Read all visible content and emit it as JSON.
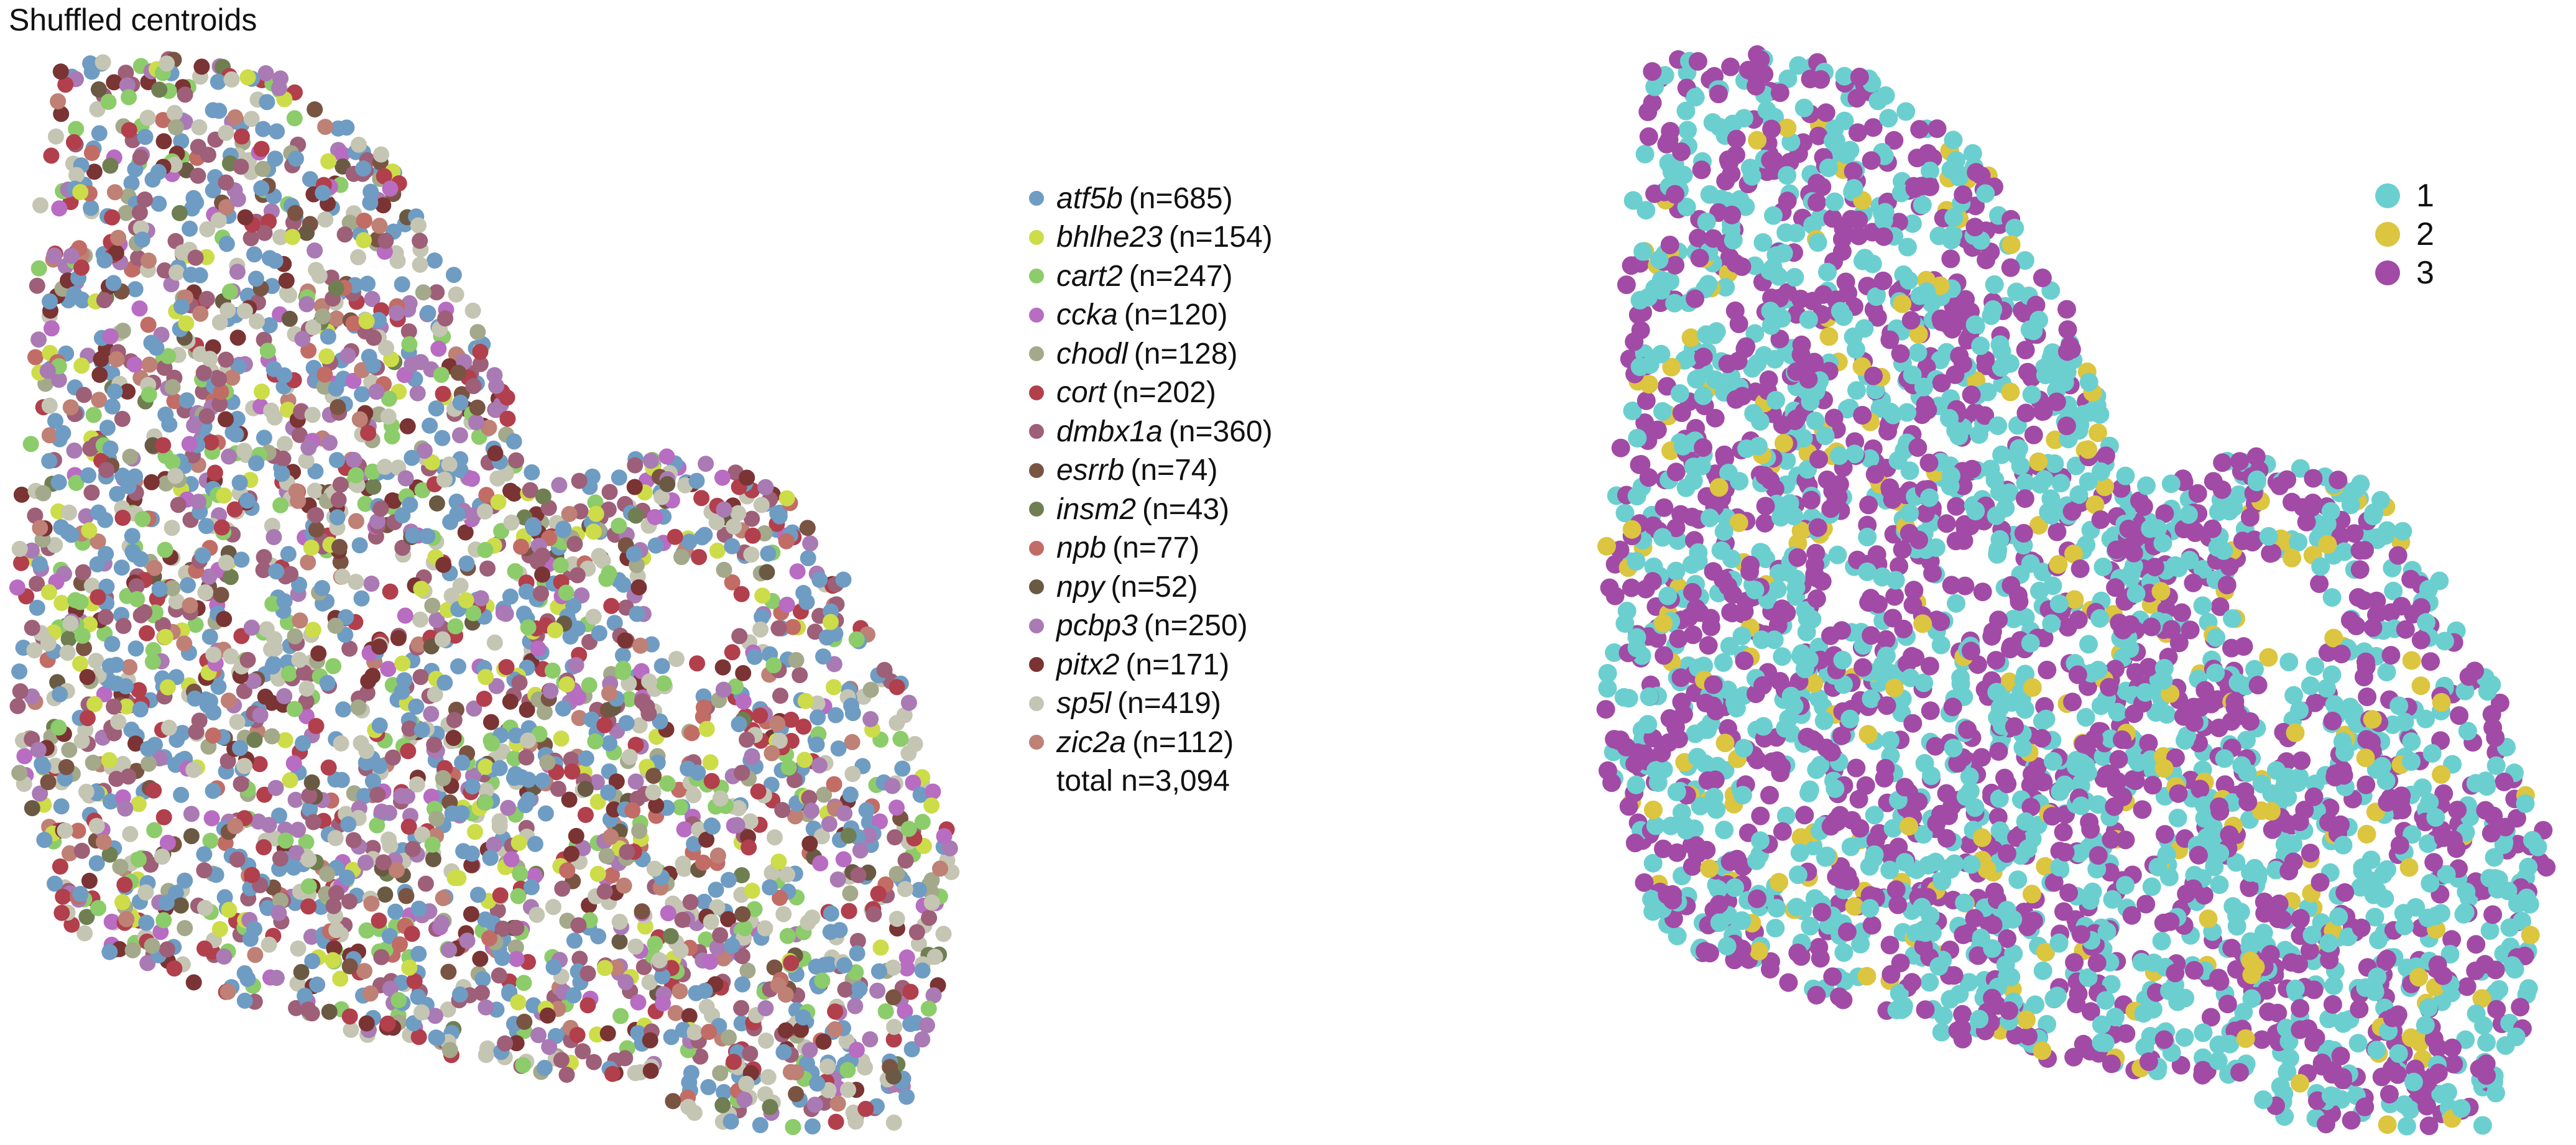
{
  "title": "Shuffled centroids",
  "chart_data": [
    {
      "type": "scatter",
      "title": "Shuffled centroids",
      "legend_placement": "right",
      "grid": false,
      "axes_visible": false,
      "series": [
        {
          "name": "atf5b",
          "n_label": "(n=685)",
          "count": 685,
          "color": "#6f9cc3"
        },
        {
          "name": "bhlhe23",
          "n_label": "(n=154)",
          "count": 154,
          "color": "#cddc49"
        },
        {
          "name": "cart2",
          "n_label": "(n=247)",
          "count": 247,
          "color": "#8ccc6a"
        },
        {
          "name": "ccka",
          "n_label": "(n=120)",
          "count": 120,
          "color": "#b86cc2"
        },
        {
          "name": "chodl",
          "n_label": "(n=128)",
          "count": 128,
          "color": "#a3a98a"
        },
        {
          "name": "cort",
          "n_label": "(n=202)",
          "count": 202,
          "color": "#b23f4c"
        },
        {
          "name": "dmbx1a",
          "n_label": "(n=360)",
          "count": 360,
          "color": "#9e5f78"
        },
        {
          "name": "esrrb",
          "n_label": "(n=74)",
          "count": 74,
          "color": "#7a5443"
        },
        {
          "name": "insm2",
          "n_label": "(n=43)",
          "count": 43,
          "color": "#6f7f52"
        },
        {
          "name": "npb",
          "n_label": "(n=77)",
          "count": 77,
          "color": "#c26c66"
        },
        {
          "name": "npy",
          "n_label": "(n=52)",
          "count": 52,
          "color": "#6a5a44"
        },
        {
          "name": "pcbp3",
          "n_label": "(n=250)",
          "count": 250,
          "color": "#aa7ab4"
        },
        {
          "name": "pitx2",
          "n_label": "(n=171)",
          "count": 171,
          "color": "#7a3433"
        },
        {
          "name": "sp5l",
          "n_label": "(n=419)",
          "count": 419,
          "color": "#c5c5b3"
        },
        {
          "name": "zic2a",
          "n_label": "(n=112)",
          "count": 112,
          "color": "#bf8075"
        }
      ],
      "total_label": "total n=3,094",
      "total": 3094
    },
    {
      "type": "scatter",
      "legend_placement": "top-right",
      "grid": false,
      "axes_visible": false,
      "series": [
        {
          "name": "1",
          "color": "#6ccfcf"
        },
        {
          "name": "2",
          "color": "#dcc53f"
        },
        {
          "name": "3",
          "color": "#a14ba6"
        }
      ]
    }
  ]
}
